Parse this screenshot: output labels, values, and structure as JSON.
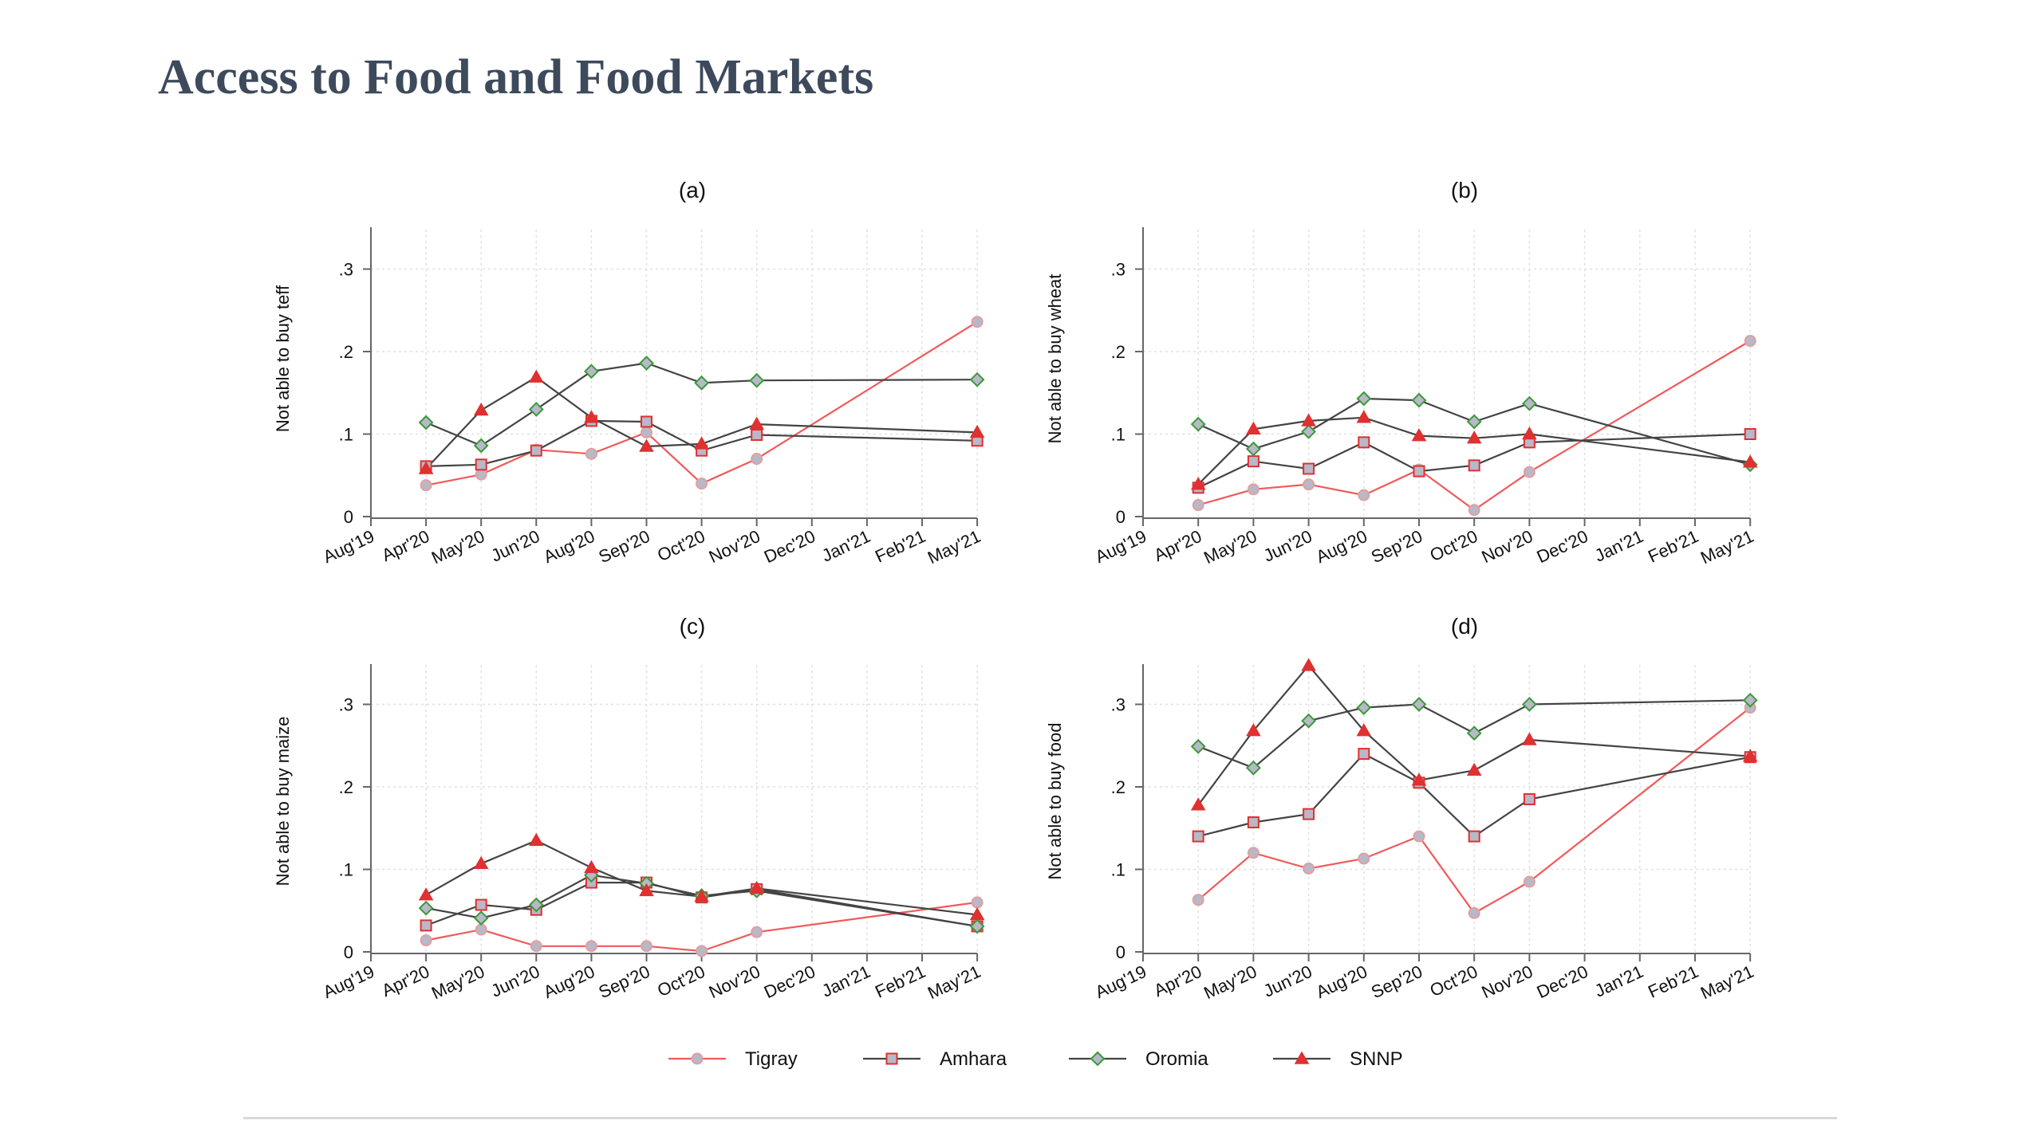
{
  "page": {
    "title": "Access to Food and Food Markets"
  },
  "colors": {
    "Tigray": "#f05a5a",
    "Amhara": "#444444",
    "Oromia": "#444444",
    "SNNP": "#444444",
    "marker_red": "#e03030",
    "marker_green": "#3a9a3a",
    "marker_gray": "#b8b8c8",
    "marker_pink": "#e0a0a0"
  },
  "chart_data": [
    {
      "type": "line",
      "title": "(a)",
      "xlabel": "",
      "ylabel": "Not able to buy teff",
      "x_ticks": [
        "Aug'19",
        "Apr'20",
        "May'20",
        "Jun'20",
        "Aug'20",
        "Sep'20",
        "Oct'20",
        "Nov'20",
        "Dec'20",
        "Jan'21",
        "Feb'21",
        "May'21"
      ],
      "y_ticks": [
        "0",
        ".1",
        ".2",
        ".3"
      ],
      "ylim": [
        0,
        0.35
      ],
      "grid": true,
      "series": [
        {
          "name": "Tigray",
          "x": [
            "Apr'20",
            "May'20",
            "Jun'20",
            "Aug'20",
            "Sep'20",
            "Oct'20",
            "Nov'20",
            "May'21"
          ],
          "values": [
            0.038,
            0.051,
            0.081,
            0.076,
            0.102,
            0.04,
            0.07,
            0.236
          ]
        },
        {
          "name": "Amhara",
          "x": [
            "Apr'20",
            "May'20",
            "Jun'20",
            "Aug'20",
            "Sep'20",
            "Oct'20",
            "Nov'20",
            "May'21"
          ],
          "values": [
            0.061,
            0.063,
            0.08,
            0.116,
            0.115,
            0.08,
            0.099,
            0.092
          ]
        },
        {
          "name": "Oromia",
          "x": [
            "Apr'20",
            "May'20",
            "Jun'20",
            "Aug'20",
            "Sep'20",
            "Oct'20",
            "Nov'20",
            "May'21"
          ],
          "values": [
            0.114,
            0.086,
            0.13,
            0.176,
            0.186,
            0.162,
            0.165,
            0.166
          ]
        },
        {
          "name": "SNNP",
          "x": [
            "Apr'20",
            "May'20",
            "Jun'20",
            "Aug'20",
            "Sep'20",
            "Oct'20",
            "Nov'20",
            "May'21"
          ],
          "values": [
            0.058,
            0.129,
            0.169,
            0.12,
            0.085,
            0.088,
            0.112,
            0.102
          ]
        }
      ]
    },
    {
      "type": "line",
      "title": "(b)",
      "xlabel": "",
      "ylabel": "Not able to buy wheat",
      "x_ticks": [
        "Aug'19",
        "Apr'20",
        "May'20",
        "Jun'20",
        "Aug'20",
        "Sep'20",
        "Oct'20",
        "Nov'20",
        "Dec'20",
        "Jan'21",
        "Feb'21",
        "May'21"
      ],
      "y_ticks": [
        "0",
        ".1",
        ".2",
        ".3"
      ],
      "ylim": [
        0,
        0.35
      ],
      "grid": true,
      "series": [
        {
          "name": "Tigray",
          "x": [
            "Apr'20",
            "May'20",
            "Jun'20",
            "Aug'20",
            "Sep'20",
            "Oct'20",
            "Nov'20",
            "May'21"
          ],
          "values": [
            0.014,
            0.033,
            0.039,
            0.026,
            0.057,
            0.008,
            0.054,
            0.213
          ]
        },
        {
          "name": "Amhara",
          "x": [
            "Apr'20",
            "May'20",
            "Jun'20",
            "Aug'20",
            "Sep'20",
            "Oct'20",
            "Nov'20",
            "May'21"
          ],
          "values": [
            0.035,
            0.067,
            0.058,
            0.09,
            0.055,
            0.062,
            0.09,
            0.1
          ]
        },
        {
          "name": "Oromia",
          "x": [
            "Apr'20",
            "May'20",
            "Jun'20",
            "Aug'20",
            "Sep'20",
            "Oct'20",
            "Nov'20",
            "May'21"
          ],
          "values": [
            0.112,
            0.082,
            0.103,
            0.143,
            0.141,
            0.115,
            0.137,
            0.063
          ]
        },
        {
          "name": "SNNP",
          "x": [
            "Apr'20",
            "May'20",
            "Jun'20",
            "Aug'20",
            "Sep'20",
            "Oct'20",
            "Nov'20",
            "May'21"
          ],
          "values": [
            0.039,
            0.106,
            0.116,
            0.12,
            0.098,
            0.095,
            0.1,
            0.066
          ]
        }
      ]
    },
    {
      "type": "line",
      "title": "(c)",
      "xlabel": "",
      "ylabel": "Not able to buy maize",
      "x_ticks": [
        "Aug'19",
        "Apr'20",
        "May'20",
        "Jun'20",
        "Aug'20",
        "Sep'20",
        "Oct'20",
        "Nov'20",
        "Dec'20",
        "Jan'21",
        "Feb'21",
        "May'21"
      ],
      "y_ticks": [
        "0",
        ".1",
        ".2",
        ".3"
      ],
      "ylim": [
        0,
        0.35
      ],
      "grid": true,
      "series": [
        {
          "name": "Tigray",
          "x": [
            "Apr'20",
            "May'20",
            "Jun'20",
            "Aug'20",
            "Sep'20",
            "Oct'20",
            "Nov'20",
            "May'21"
          ],
          "values": [
            0.014,
            0.027,
            0.007,
            0.007,
            0.007,
            0.001,
            0.024,
            0.06
          ]
        },
        {
          "name": "Amhara",
          "x": [
            "Apr'20",
            "May'20",
            "Jun'20",
            "Aug'20",
            "Sep'20",
            "Oct'20",
            "Nov'20",
            "May'21"
          ],
          "values": [
            0.032,
            0.057,
            0.051,
            0.084,
            0.084,
            0.066,
            0.076,
            0.031
          ]
        },
        {
          "name": "Oromia",
          "x": [
            "Apr'20",
            "May'20",
            "Jun'20",
            "Aug'20",
            "Sep'20",
            "Oct'20",
            "Nov'20",
            "May'21"
          ],
          "values": [
            0.053,
            0.041,
            0.057,
            0.093,
            0.083,
            0.068,
            0.074,
            0.031
          ]
        },
        {
          "name": "SNNP",
          "x": [
            "Apr'20",
            "May'20",
            "Jun'20",
            "Aug'20",
            "Sep'20",
            "Oct'20",
            "Nov'20",
            "May'21"
          ],
          "values": [
            0.069,
            0.107,
            0.135,
            0.102,
            0.074,
            0.067,
            0.077,
            0.045
          ]
        }
      ]
    },
    {
      "type": "line",
      "title": "(d)",
      "xlabel": "",
      "ylabel": "Not able to buy food",
      "x_ticks": [
        "Aug'19",
        "Apr'20",
        "May'20",
        "Jun'20",
        "Aug'20",
        "Sep'20",
        "Oct'20",
        "Nov'20",
        "Dec'20",
        "Jan'21",
        "Feb'21",
        "May'21"
      ],
      "y_ticks": [
        "0",
        ".1",
        ".2",
        ".3"
      ],
      "ylim": [
        0,
        0.35
      ],
      "grid": true,
      "series": [
        {
          "name": "Tigray",
          "x": [
            "Apr'20",
            "May'20",
            "Jun'20",
            "Aug'20",
            "Sep'20",
            "Oct'20",
            "Nov'20",
            "May'21"
          ],
          "values": [
            0.063,
            0.12,
            0.101,
            0.113,
            0.14,
            0.047,
            0.085,
            0.296
          ]
        },
        {
          "name": "Amhara",
          "x": [
            "Apr'20",
            "May'20",
            "Jun'20",
            "Aug'20",
            "Sep'20",
            "Oct'20",
            "Nov'20",
            "May'21"
          ],
          "values": [
            0.14,
            0.157,
            0.167,
            0.24,
            0.205,
            0.14,
            0.185,
            0.236
          ]
        },
        {
          "name": "Oromia",
          "x": [
            "Apr'20",
            "May'20",
            "Jun'20",
            "Aug'20",
            "Sep'20",
            "Oct'20",
            "Nov'20",
            "May'21"
          ],
          "values": [
            0.249,
            0.223,
            0.28,
            0.296,
            0.3,
            0.265,
            0.3,
            0.305
          ]
        },
        {
          "name": "SNNP",
          "x": [
            "Apr'20",
            "May'20",
            "Jun'20",
            "Aug'20",
            "Sep'20",
            "Oct'20",
            "Nov'20",
            "May'21"
          ],
          "values": [
            0.178,
            0.268,
            0.347,
            0.268,
            0.208,
            0.22,
            0.257,
            0.237
          ]
        }
      ]
    }
  ],
  "legend": {
    "placement": "bottom",
    "items": [
      {
        "name": "Tigray",
        "marker": "circle"
      },
      {
        "name": "Amhara",
        "marker": "square"
      },
      {
        "name": "Oromia",
        "marker": "diamond"
      },
      {
        "name": "SNNP",
        "marker": "triangle"
      }
    ]
  }
}
